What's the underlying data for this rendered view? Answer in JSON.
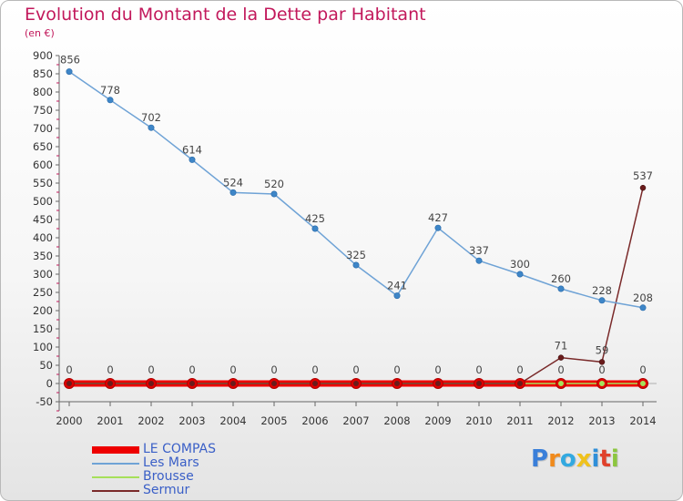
{
  "chart_data": {
    "type": "line",
    "title": "Evolution du Montant de la Dette par Habitant",
    "subtitle": "(en €)",
    "xlabel": "",
    "ylabel": "",
    "ylim": [
      -50,
      900
    ],
    "yticks": [
      900,
      850,
      800,
      750,
      700,
      650,
      600,
      550,
      500,
      450,
      400,
      350,
      300,
      250,
      200,
      150,
      100,
      50,
      0,
      -50
    ],
    "x": [
      "2000",
      "2001",
      "2002",
      "2003",
      "2004",
      "2005",
      "2006",
      "2007",
      "2008",
      "2009",
      "2010",
      "2011",
      "2012",
      "2013",
      "2014"
    ],
    "grid": false,
    "legend_position": "bottom-left",
    "series": [
      {
        "name": "LE COMPAS",
        "color": "#ee0000",
        "values": [
          0,
          0,
          0,
          0,
          0,
          0,
          0,
          0,
          0,
          0,
          0,
          0,
          0,
          0,
          0
        ],
        "labels": [
          "0",
          "0",
          "0",
          "0",
          "0",
          "0",
          "0",
          "0",
          "0",
          "0",
          "0",
          "0",
          "0",
          "0",
          "0"
        ]
      },
      {
        "name": "Les Mars",
        "color": "#6fa3d6",
        "values": [
          856,
          778,
          702,
          614,
          524,
          520,
          425,
          325,
          241,
          427,
          337,
          300,
          260,
          228,
          208
        ],
        "labels": [
          "856",
          "778",
          "702",
          "614",
          "524",
          "520",
          "425",
          "325",
          "241",
          "427",
          "337",
          "300",
          "260",
          "228",
          "208"
        ]
      },
      {
        "name": "Brousse",
        "color": "#a6e05a",
        "values": [
          0,
          0,
          0,
          0,
          0,
          0,
          0,
          0,
          0,
          0,
          0,
          0,
          0,
          0,
          0
        ],
        "labels": []
      },
      {
        "name": "Sermur",
        "color": "#7a2a2a",
        "values": [
          0,
          0,
          0,
          0,
          0,
          0,
          0,
          0,
          0,
          0,
          0,
          0,
          71,
          59,
          537
        ],
        "labels": [
          "",
          "",
          "",
          "",
          "",
          "",
          "",
          "",
          "",
          "",
          "",
          "",
          "71",
          "59",
          "537"
        ]
      }
    ]
  },
  "logo": {
    "letters": [
      "P",
      "r",
      "o",
      "x",
      "i",
      "t",
      "i"
    ],
    "colors": [
      "#3a7fd9",
      "#f08a1c",
      "#33a9e0",
      "#f0c21c",
      "#2f8fd9",
      "#e0412b",
      "#8cc63f"
    ]
  }
}
